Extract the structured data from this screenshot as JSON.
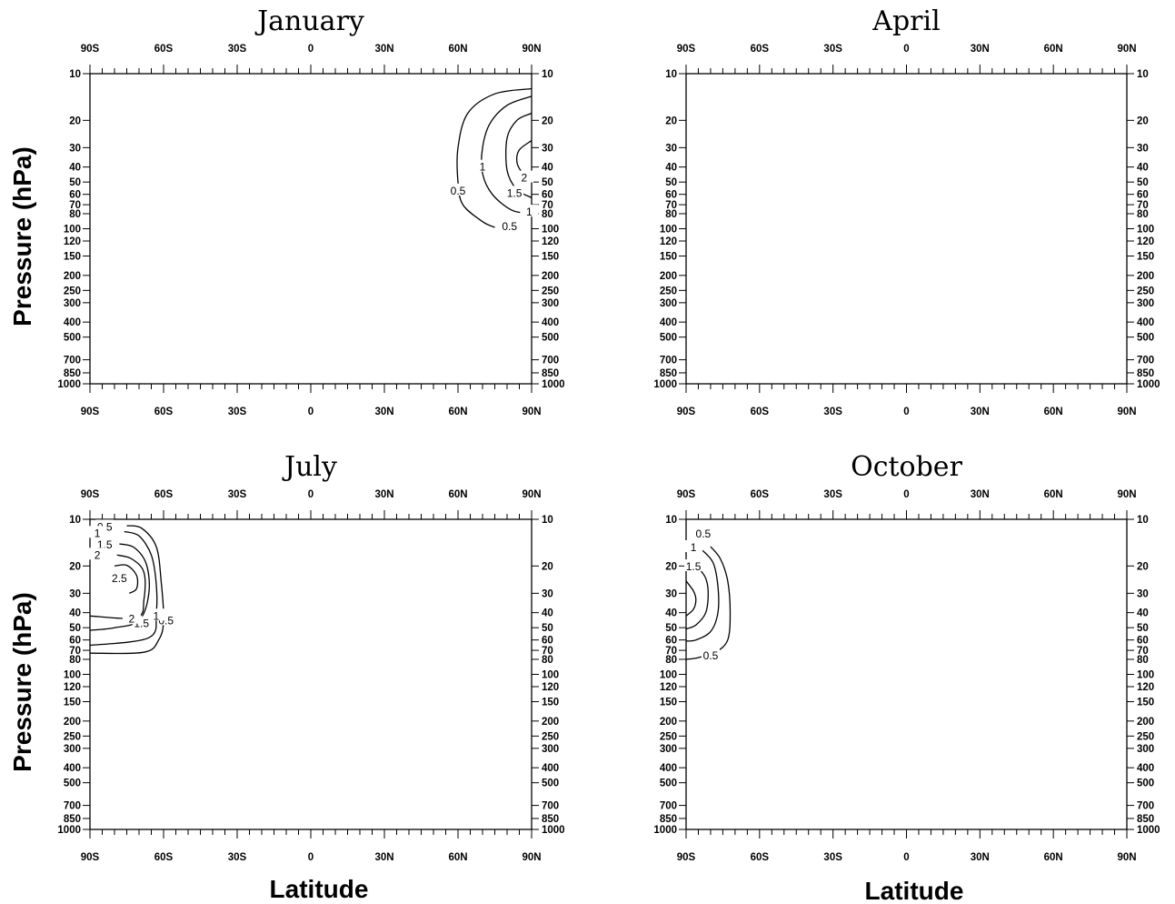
{
  "figure": {
    "ylabel": "Pressure (hPa)",
    "xlabel": "Latitude"
  },
  "chart_data": [
    {
      "type": "contour",
      "title": "January",
      "xticks": [
        "90S",
        "60S",
        "30S",
        "0",
        "30N",
        "60N",
        "90N"
      ],
      "yticks": [
        10,
        20,
        30,
        40,
        50,
        60,
        70,
        80,
        100,
        120,
        150,
        200,
        250,
        300,
        400,
        500,
        700,
        850,
        1000
      ],
      "y_scale": "log",
      "xlim": [
        -90,
        90
      ],
      "ylim": [
        1000,
        10
      ],
      "contours": [
        {
          "level": "0.5",
          "lat": [
            90,
            75,
            64,
            60,
            60,
            62,
            70,
            75
          ],
          "p": [
            12.5,
            13.5,
            18,
            30,
            50,
            70,
            90,
            98
          ],
          "label_at": [
            [
              60,
              57
            ],
            [
              81,
              97
            ]
          ]
        },
        {
          "level": "1",
          "lat": [
            90,
            80,
            73,
            70,
            70,
            74,
            82,
            90
          ],
          "p": [
            14,
            16,
            21,
            30,
            44,
            60,
            76,
            80
          ],
          "label_at": [
            [
              70,
              40
            ],
            [
              89,
              78
            ]
          ]
        },
        {
          "level": "1.5",
          "lat": [
            90,
            84,
            80,
            80,
            84,
            90
          ],
          "p": [
            18,
            20,
            26,
            42,
            56,
            63
          ],
          "label_at": [
            [
              83,
              59
            ]
          ]
        },
        {
          "level": "2",
          "lat": [
            90,
            85,
            84,
            86,
            90
          ],
          "p": [
            27,
            31,
            37,
            43,
            48
          ],
          "label_at": [
            [
              87,
              47
            ]
          ]
        }
      ]
    },
    {
      "type": "contour",
      "title": "April",
      "xticks": [
        "90S",
        "60S",
        "30S",
        "0",
        "30N",
        "60N",
        "90N"
      ],
      "yticks": [
        10,
        20,
        30,
        40,
        50,
        60,
        70,
        80,
        100,
        120,
        150,
        200,
        250,
        300,
        400,
        500,
        700,
        850,
        1000
      ],
      "y_scale": "log",
      "xlim": [
        -90,
        90
      ],
      "ylim": [
        1000,
        10
      ],
      "contours": []
    },
    {
      "type": "contour",
      "title": "July",
      "xticks": [
        "90S",
        "60S",
        "30S",
        "0",
        "30N",
        "60N",
        "90N"
      ],
      "yticks": [
        10,
        20,
        30,
        40,
        50,
        60,
        70,
        80,
        100,
        120,
        150,
        200,
        250,
        300,
        400,
        500,
        700,
        850,
        1000
      ],
      "y_scale": "log",
      "xlim": [
        -90,
        90
      ],
      "ylim": [
        1000,
        10
      ],
      "contours": [
        {
          "level": "0.5",
          "lat": [
            -75,
            -69,
            -63,
            -61,
            -60,
            -62,
            -68,
            -90
          ],
          "p": [
            11,
            11.4,
            15,
            25,
            45,
            60,
            72,
            73
          ],
          "label_at": [
            [
              -84,
              11.2
            ],
            [
              -59,
              45
            ]
          ]
        },
        {
          "level": "1",
          "lat": [
            -76,
            -70,
            -65,
            -63,
            -63,
            -66,
            -90
          ],
          "p": [
            12,
            12.8,
            17,
            26,
            40,
            58,
            65
          ],
          "label_at": [
            [
              -87,
              12.3
            ],
            [
              -63,
              42
            ]
          ]
        },
        {
          "level": "1.5",
          "lat": [
            -78,
            -72,
            -67,
            -66,
            -70,
            -80,
            -90
          ],
          "p": [
            14.4,
            15.2,
            19.5,
            30,
            45,
            50,
            52
          ],
          "label_at": [
            [
              -84,
              14.6
            ],
            [
              -69,
              47
            ]
          ]
        },
        {
          "level": "2",
          "lat": [
            -79,
            -73,
            -68,
            -68,
            -71,
            -90
          ],
          "p": [
            17,
            18,
            22,
            33,
            43,
            42
          ],
          "label_at": [
            [
              -87,
              17
            ],
            [
              -73,
              44
            ]
          ]
        },
        {
          "level": "2.5",
          "lat": [
            -80,
            -75,
            -71,
            -71,
            -74
          ],
          "p": [
            20,
            19.8,
            23,
            28,
            30
          ],
          "label_at": [
            [
              -78,
              24
            ]
          ]
        }
      ]
    },
    {
      "type": "contour",
      "title": "October",
      "xticks": [
        "90S",
        "60S",
        "30S",
        "0",
        "30N",
        "60N",
        "90N"
      ],
      "yticks": [
        10,
        20,
        30,
        40,
        50,
        60,
        70,
        80,
        100,
        120,
        150,
        200,
        250,
        300,
        400,
        500,
        700,
        850,
        1000
      ],
      "y_scale": "log",
      "xlim": [
        -90,
        90
      ],
      "ylim": [
        1000,
        10
      ],
      "contours": [
        {
          "level": "0.5",
          "lat": [
            -80,
            -76,
            -73,
            -72,
            -73,
            -78,
            -85,
            -90
          ],
          "p": [
            15,
            18,
            25,
            40,
            60,
            72,
            78,
            80
          ],
          "label_at": [
            [
              -83,
              12.4
            ],
            [
              -80,
              76
            ]
          ]
        },
        {
          "level": "1",
          "lat": [
            -84,
            -79,
            -77,
            -77,
            -80,
            -86,
            -90
          ],
          "p": [
            15.5,
            19,
            27,
            40,
            53,
            60,
            61
          ],
          "label_at": [
            [
              -87,
              15.2
            ]
          ]
        },
        {
          "level": "1.5",
          "lat": [
            -85,
            -82,
            -81,
            -82,
            -86,
            -90
          ],
          "p": [
            20.5,
            24,
            30,
            40,
            48,
            51
          ],
          "label_at": [
            [
              -87,
              20.2
            ]
          ]
        },
        {
          "level": "2",
          "lat": [
            -90,
            -87,
            -86,
            -87,
            -90
          ],
          "p": [
            25,
            29,
            33,
            38,
            42
          ],
          "label_at": []
        }
      ]
    }
  ]
}
